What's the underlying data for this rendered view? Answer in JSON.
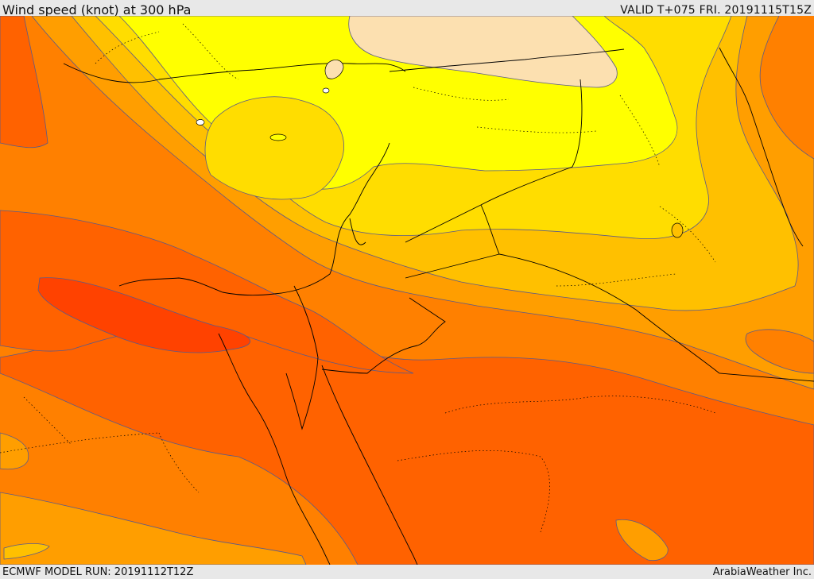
{
  "header": {
    "title": "Wind speed (knot) at 300 hPa",
    "valid_time": "VALID T+075 FRI. 20191115T15Z"
  },
  "footer": {
    "model_run": "ECMWF MODEL RUN: 20191112T12Z",
    "credit": "ArabiaWeather Inc."
  },
  "map": {
    "field": "wind speed at 300 hPa",
    "palette": {
      "band_below_40": "#fce0b0",
      "band_40_60": "#ffff00",
      "band_60_70": "#ffdd00",
      "band_70_80": "#ffc000",
      "band_80_90": "#ff9e00",
      "band_90_100": "#ff8000",
      "band_100_110": "#ff6200",
      "band_110_plus": "#ff4200",
      "contour_line": "#5a5a8a",
      "coastline": "#000000",
      "border": "#000000"
    }
  }
}
